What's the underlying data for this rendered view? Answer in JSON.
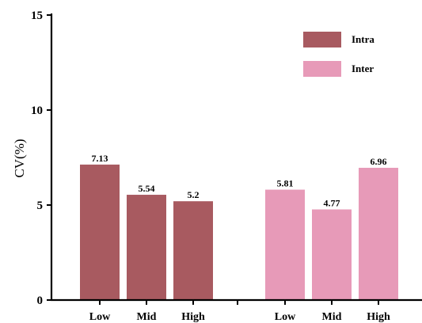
{
  "chart_data": {
    "type": "bar",
    "ylabel": "CV(%)",
    "xlabel": "",
    "ylim": [
      0,
      15
    ],
    "yticks": [
      0,
      5,
      10,
      15
    ],
    "grid": false,
    "legend_position": "top-right",
    "series": [
      {
        "name": "Intra",
        "color": "#a85a60",
        "categories": [
          "Low",
          "Mid",
          "High"
        ],
        "values": [
          7.13,
          5.54,
          5.2
        ],
        "labels": [
          "7.13",
          "5.54",
          "5.2"
        ]
      },
      {
        "name": "Inter",
        "color": "#e79ab8",
        "categories": [
          "Low",
          "Mid",
          "High"
        ],
        "values": [
          5.81,
          4.77,
          6.96
        ],
        "labels": [
          "5.81",
          "4.77",
          "6.96"
        ]
      }
    ]
  }
}
